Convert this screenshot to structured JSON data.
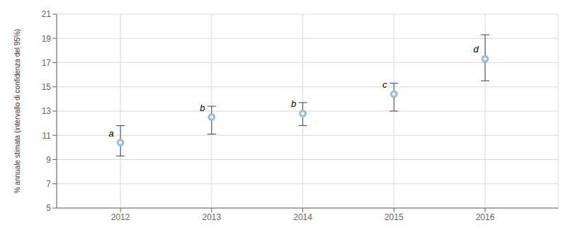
{
  "chart_data": {
    "type": "scatter",
    "ylabel": "% annuale stimata (intervallo di confidenza del 95%)",
    "x": [
      2012,
      2013,
      2014,
      2015,
      2016
    ],
    "values": [
      10.4,
      12.5,
      12.8,
      14.4,
      17.3
    ],
    "err_low": [
      1.1,
      1.4,
      1.0,
      1.4,
      1.8
    ],
    "err_high": [
      1.4,
      0.9,
      0.9,
      0.9,
      2.0
    ],
    "annotations": [
      "a",
      "b",
      "b",
      "c",
      "d"
    ],
    "xlim": [
      2011.3,
      2016.8
    ],
    "xticks": [
      2012,
      2013,
      2014,
      2015,
      2016
    ],
    "ylim": [
      5,
      21
    ],
    "yticks": [
      5,
      7,
      9,
      11,
      13,
      15,
      17,
      19,
      21
    ],
    "color": "#9BBDD8",
    "grid": true
  }
}
